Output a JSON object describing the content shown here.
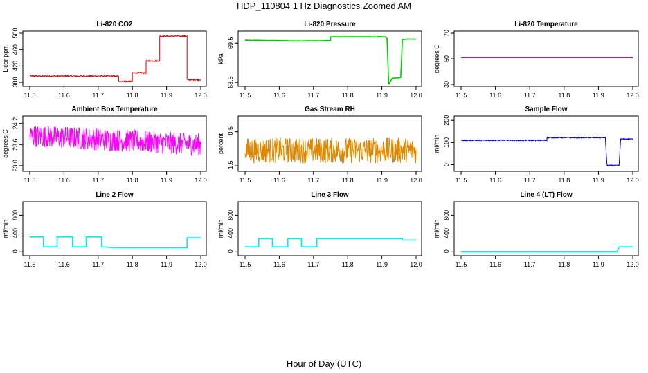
{
  "title": "HDP_110804  1 Hz Diagnostics Zoomed AM",
  "xlabel": "Hour of Day (UTC)",
  "chart_data": [
    {
      "type": "line",
      "title": "Li-820 CO2",
      "ylabel": "Licor ppm",
      "color": "#dd0000",
      "xlim": [
        11.5,
        12.0
      ],
      "ylim": [
        375,
        500
      ],
      "yticks": [
        "380",
        "420",
        "460",
        "500"
      ],
      "ytick_values": [
        380,
        420,
        460,
        500
      ],
      "xticks": [
        "11.5",
        "11.6",
        "11.7",
        "11.8",
        "11.9",
        "12.0"
      ],
      "x": [
        11.5,
        11.76,
        11.76,
        11.8,
        11.8,
        11.84,
        11.84,
        11.88,
        11.88,
        11.96,
        11.96,
        12.0
      ],
      "y": [
        395,
        395,
        382,
        382,
        403,
        403,
        432,
        432,
        493,
        493,
        386,
        386
      ],
      "noise": 1.5
    },
    {
      "type": "line",
      "title": "Li-820 Pressure",
      "ylabel": "kPa",
      "color": "#00cc00",
      "xlim": [
        11.5,
        12.0
      ],
      "ylim": [
        68.45,
        69.75
      ],
      "yticks": [
        "68.5",
        "69.5"
      ],
      "ytick_values": [
        68.5,
        69.5
      ],
      "xticks": [
        "11.5",
        "11.6",
        "11.7",
        "11.8",
        "11.9",
        "12.0"
      ],
      "x": [
        11.5,
        11.6,
        11.65,
        11.75,
        11.75,
        11.91,
        11.915,
        11.92,
        11.93,
        11.955,
        11.96,
        11.97,
        12.0
      ],
      "y": [
        69.57,
        69.56,
        69.55,
        69.56,
        69.66,
        69.66,
        69.62,
        68.45,
        68.6,
        68.62,
        69.58,
        69.6,
        69.6
      ],
      "noise": 0.005
    },
    {
      "type": "line",
      "title": "Li-820 Temperature",
      "ylabel": "degrees C",
      "color": "#cc00cc",
      "xlim": [
        11.5,
        12.0
      ],
      "ylim": [
        30,
        70
      ],
      "yticks": [
        "30",
        "50",
        "70"
      ],
      "ytick_values": [
        30,
        50,
        70
      ],
      "xticks": [
        "11.5",
        "11.6",
        "11.7",
        "11.8",
        "11.9",
        "12.0"
      ],
      "x": [
        11.5,
        12.0
      ],
      "y": [
        51,
        51
      ],
      "noise": 0
    },
    {
      "type": "line",
      "title": "Ambient Box Temperature",
      "ylabel": "degrees C",
      "color": "#ff00ff",
      "xlim": [
        11.5,
        12.0
      ],
      "ylim": [
        22.9,
        24.35
      ],
      "yticks": [
        "23.0",
        "23.6",
        "24.2"
      ],
      "ytick_values": [
        23.0,
        23.6,
        24.2
      ],
      "xticks": [
        "11.5",
        "11.6",
        "11.7",
        "11.8",
        "11.9",
        "12.0"
      ],
      "x": [
        11.5,
        11.7,
        12.0
      ],
      "y": [
        23.85,
        23.75,
        23.6
      ],
      "noise": 0.32
    },
    {
      "type": "line",
      "title": "Gas Stream RH",
      "ylabel": "percent",
      "color": "#dd8800",
      "xlim": [
        11.5,
        12.0
      ],
      "ylim": [
        -1.6,
        -0.1
      ],
      "yticks": [
        "-1.5",
        "-0.5"
      ],
      "ytick_values": [
        -1.5,
        -0.5
      ],
      "xticks": [
        "11.5",
        "11.6",
        "11.7",
        "11.8",
        "11.9",
        "12.0"
      ],
      "x": [
        11.5,
        12.0
      ],
      "y": [
        -1.05,
        -1.05
      ],
      "noise": 0.38
    },
    {
      "type": "line",
      "title": "Sample Flow",
      "ylabel": "ml/min",
      "color": "#0000cc",
      "xlim": [
        11.5,
        12.0
      ],
      "ylim": [
        -20,
        210
      ],
      "yticks": [
        "0",
        "100",
        "200"
      ],
      "ytick_values": [
        0,
        100,
        200
      ],
      "xticks": [
        "11.5",
        "11.6",
        "11.7",
        "11.8",
        "11.9",
        "12.0"
      ],
      "x": [
        11.5,
        11.75,
        11.75,
        11.92,
        11.925,
        11.96,
        11.965,
        12.0
      ],
      "y": [
        110,
        110,
        122,
        122,
        -3,
        -3,
        116,
        116
      ],
      "noise": 2
    },
    {
      "type": "line",
      "title": "Line 2 Flow",
      "ylabel": "ml/min",
      "color": "#00eeee",
      "xlim": [
        11.5,
        12.0
      ],
      "ylim": [
        -50,
        1050
      ],
      "yticks": [
        "0",
        "400",
        "800"
      ],
      "ytick_values": [
        0,
        400,
        800
      ],
      "xticks": [
        "11.5",
        "11.6",
        "11.7",
        "11.8",
        "11.9",
        "12.0"
      ],
      "x": [
        11.5,
        11.54,
        11.54,
        11.58,
        11.58,
        11.625,
        11.625,
        11.665,
        11.665,
        11.71,
        11.71,
        11.75,
        11.96,
        11.96,
        12.0
      ],
      "y": [
        320,
        320,
        100,
        100,
        320,
        320,
        100,
        100,
        320,
        320,
        100,
        80,
        80,
        300,
        300
      ],
      "noise": 0
    },
    {
      "type": "line",
      "title": "Line 3 Flow",
      "ylabel": "ml/min",
      "color": "#00eeee",
      "xlim": [
        11.5,
        12.0
      ],
      "ylim": [
        -50,
        1050
      ],
      "yticks": [
        "0",
        "400",
        "800"
      ],
      "ytick_values": [
        0,
        400,
        800
      ],
      "xticks": [
        "11.5",
        "11.6",
        "11.7",
        "11.8",
        "11.9",
        "12.0"
      ],
      "x": [
        11.5,
        11.54,
        11.54,
        11.58,
        11.58,
        11.625,
        11.625,
        11.665,
        11.665,
        11.71,
        11.71,
        11.96,
        11.96,
        12.0
      ],
      "y": [
        100,
        100,
        280,
        280,
        100,
        100,
        280,
        280,
        100,
        100,
        280,
        280,
        250,
        250
      ],
      "noise": 0
    },
    {
      "type": "line",
      "title": "Line 4 (LT) Flow",
      "ylabel": "ml/min",
      "color": "#00eeee",
      "xlim": [
        11.5,
        12.0
      ],
      "ylim": [
        -50,
        1050
      ],
      "yticks": [
        "0",
        "400",
        "800"
      ],
      "ytick_values": [
        0,
        400,
        800
      ],
      "xticks": [
        "11.5",
        "11.6",
        "11.7",
        "11.8",
        "11.9",
        "12.0"
      ],
      "x": [
        11.5,
        11.955,
        11.96,
        12.0
      ],
      "y": [
        -10,
        -10,
        100,
        100
      ],
      "noise": 0
    }
  ]
}
